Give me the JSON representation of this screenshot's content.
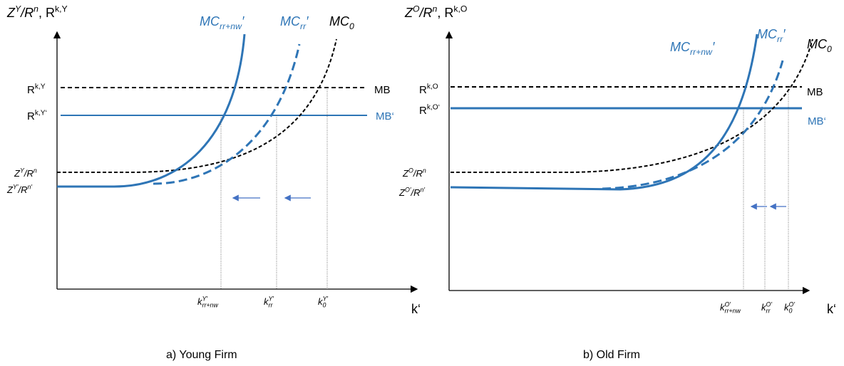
{
  "panels": [
    {
      "labels": [
        {
          "italic": true,
          "color": "#000000",
          "parts": [
            [
              "Z",
              "base"
            ],
            [
              "Y",
              "sup"
            ],
            [
              "/R",
              "base"
            ],
            [
              "n",
              "sup"
            ]
          ]
        },
        {
          "italic": false,
          "color": "#000000",
          "parts": [
            [
              ", R",
              "base"
            ],
            [
              "k,Y",
              "sup"
            ]
          ]
        },
        {
          "italic": false,
          "color": "#000000",
          "parts": [
            [
              "R",
              "base"
            ],
            [
              "k,Y",
              "sup"
            ]
          ]
        },
        {
          "italic": false,
          "color": "#000000",
          "parts": [
            [
              "R",
              "base"
            ],
            [
              "k,Y‘",
              "sup"
            ]
          ]
        },
        {
          "italic": true,
          "color": "#000000",
          "parts": [
            [
              "Z",
              "base"
            ],
            [
              "Y",
              "sup"
            ],
            [
              "/R",
              "base"
            ],
            [
              "n",
              "sup"
            ]
          ]
        },
        {
          "italic": true,
          "color": "#000000",
          "parts": [
            [
              "Z",
              "base"
            ],
            [
              "Y′",
              "sup"
            ],
            [
              "/R",
              "base"
            ],
            [
              "n′",
              "sup"
            ]
          ]
        },
        {
          "italic": false,
          "color": "#000000",
          "parts": [
            [
              "MB",
              "base"
            ]
          ]
        },
        {
          "italic": false,
          "color": "#2e75b6",
          "parts": [
            [
              "MB‘",
              "base"
            ]
          ]
        },
        {
          "italic": true,
          "color": "#2e75b6",
          "parts": [
            [
              "MC",
              "base"
            ],
            [
              "rr+nw",
              "sub"
            ],
            [
              "′",
              "base"
            ]
          ]
        },
        {
          "italic": true,
          "color": "#2e75b6",
          "parts": [
            [
              "MC",
              "base"
            ],
            [
              "rr",
              "sub"
            ],
            [
              "′",
              "base"
            ]
          ]
        },
        {
          "italic": true,
          "color": "#000000",
          "parts": [
            [
              "MC",
              "base"
            ],
            [
              "0",
              "sub"
            ]
          ]
        },
        {
          "italic": true,
          "color": "#000000",
          "parts": [
            [
              "k",
              "base"
            ],
            [
              "rr+nw",
              "sub"
            ],
            [
              "Y′",
              "sup"
            ]
          ]
        },
        {
          "italic": true,
          "color": "#000000",
          "parts": [
            [
              "k",
              "base"
            ],
            [
              "rr",
              "sub"
            ],
            [
              "Y′",
              "sup"
            ]
          ]
        },
        {
          "italic": true,
          "color": "#000000",
          "parts": [
            [
              "k",
              "base"
            ],
            [
              "0",
              "sub"
            ],
            [
              "Y′",
              "sup"
            ]
          ]
        },
        {
          "italic": false,
          "color": "#000000",
          "parts": [
            [
              "k‘",
              "base"
            ]
          ]
        },
        {
          "italic": false,
          "color": "#000000",
          "parts": [
            [
              "a) Young Firm",
              "base"
            ]
          ]
        }
      ]
    },
    {
      "labels": [
        {
          "italic": true,
          "color": "#000000",
          "parts": [
            [
              "Z",
              "base"
            ],
            [
              "O",
              "sup"
            ],
            [
              "/R",
              "base"
            ],
            [
              "n",
              "sup"
            ]
          ]
        },
        {
          "italic": false,
          "color": "#000000",
          "parts": [
            [
              ", R",
              "base"
            ],
            [
              "k,O",
              "sup"
            ]
          ]
        },
        {
          "italic": false,
          "color": "#000000",
          "parts": [
            [
              "R",
              "base"
            ],
            [
              "k,O",
              "sup"
            ]
          ]
        },
        {
          "italic": false,
          "color": "#000000",
          "parts": [
            [
              "R",
              "base"
            ],
            [
              "k,O‘",
              "sup"
            ]
          ]
        },
        {
          "italic": true,
          "color": "#000000",
          "parts": [
            [
              "Z",
              "base"
            ],
            [
              "O",
              "sup"
            ],
            [
              "/R",
              "base"
            ],
            [
              "n",
              "sup"
            ]
          ]
        },
        {
          "italic": true,
          "color": "#000000",
          "parts": [
            [
              "Z",
              "base"
            ],
            [
              "O′",
              "sup"
            ],
            [
              "/R",
              "base"
            ],
            [
              "n′",
              "sup"
            ]
          ]
        },
        {
          "italic": false,
          "color": "#000000",
          "parts": [
            [
              "MB",
              "base"
            ]
          ]
        },
        {
          "italic": false,
          "color": "#2e75b6",
          "parts": [
            [
              "MB‘",
              "base"
            ]
          ]
        },
        {
          "italic": true,
          "color": "#2e75b6",
          "parts": [
            [
              "MC",
              "base"
            ],
            [
              "rr+nw",
              "sub"
            ],
            [
              "′",
              "base"
            ]
          ]
        },
        {
          "italic": true,
          "color": "#2e75b6",
          "parts": [
            [
              "MC",
              "base"
            ],
            [
              "rr",
              "sub"
            ],
            [
              "′",
              "base"
            ]
          ]
        },
        {
          "italic": true,
          "color": "#000000",
          "parts": [
            [
              "MC",
              "base"
            ],
            [
              "0",
              "sub"
            ]
          ]
        },
        {
          "italic": true,
          "color": "#000000",
          "parts": [
            [
              "k",
              "base"
            ],
            [
              "rr+nw",
              "sub"
            ],
            [
              "O′",
              "sup"
            ]
          ]
        },
        {
          "italic": true,
          "color": "#000000",
          "parts": [
            [
              "k",
              "base"
            ],
            [
              "rr",
              "sub"
            ],
            [
              "O′",
              "sup"
            ]
          ]
        },
        {
          "italic": true,
          "color": "#000000",
          "parts": [
            [
              "k",
              "base"
            ],
            [
              "0",
              "sub"
            ],
            [
              "O′",
              "sup"
            ]
          ]
        },
        {
          "italic": false,
          "color": "#000000",
          "parts": [
            [
              "k‘",
              "base"
            ]
          ]
        },
        {
          "italic": false,
          "color": "#000000",
          "parts": [
            [
              "b) Old Firm",
              "base"
            ]
          ]
        }
      ]
    }
  ]
}
